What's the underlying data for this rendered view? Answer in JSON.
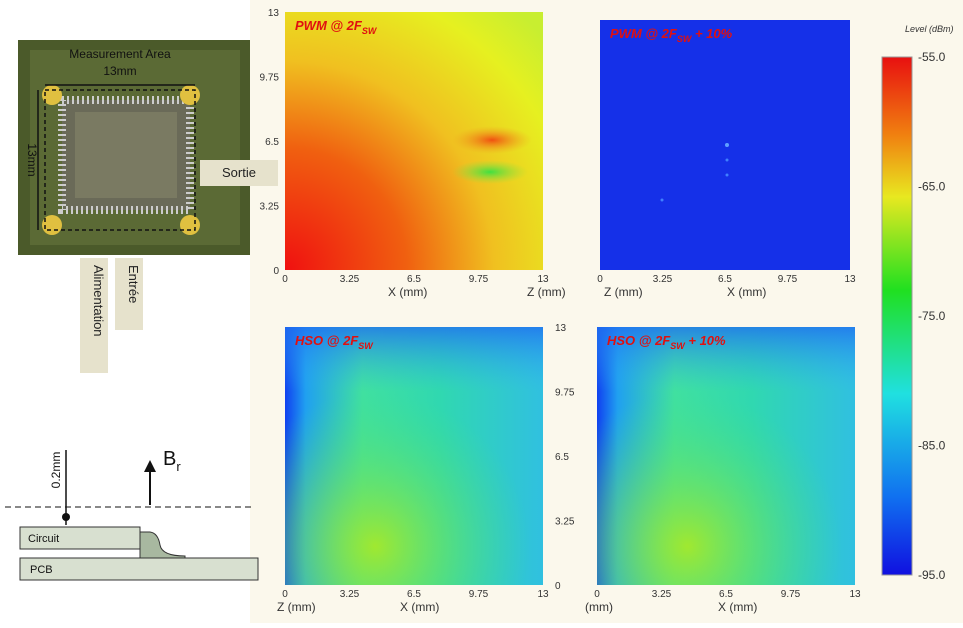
{
  "photo": {
    "title": "Measurement Area",
    "width_label": "13mm",
    "height_label": "13mm",
    "output_label": "Sortie",
    "pin_labels": [
      "Alimentation",
      "Entrée"
    ]
  },
  "cross_section": {
    "height_label": "0.2mm",
    "field_label": "B",
    "field_subscript": "r",
    "layers": [
      "Circuit",
      "PCB"
    ]
  },
  "axis_ticks": [
    "0",
    "3.25",
    "6.5",
    "9.75",
    "13"
  ],
  "axis_labels": {
    "x": "X (mm)",
    "z": "Z (mm)",
    "mm": "(mm)"
  },
  "maps": [
    {
      "title": "PWM @ 2F",
      "title_subscript": "SW"
    },
    {
      "title": "PWM @ 2F",
      "title_subscript": "SW",
      "title_suffix": " + 10%"
    },
    {
      "title": "HSO @ 2F",
      "title_subscript": "SW"
    },
    {
      "title": "HSO @ 2F",
      "title_subscript": "SW",
      "title_suffix": " + 10%"
    }
  ],
  "colorbar": {
    "title": "Level (dBm)",
    "ticks": [
      "-55.0",
      "-65.0",
      "-75.0",
      "-85.0",
      "-95.0"
    ]
  }
}
